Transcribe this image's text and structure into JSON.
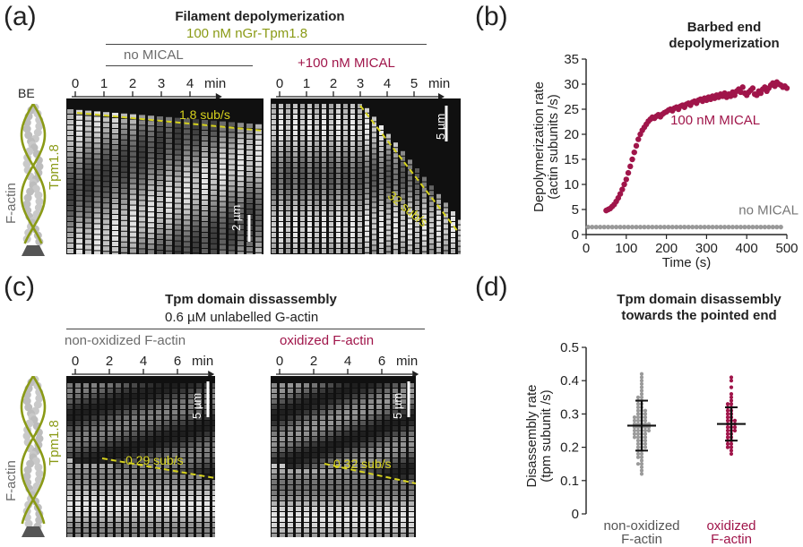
{
  "panel_a": {
    "label": "(a)",
    "title": "Filament depolymerization",
    "condition": "100 nM nGr-Tpm1.8",
    "left_header": "no MICAL",
    "right_header": "+100 nM MICAL",
    "left_ticks": [
      "0",
      "1",
      "2",
      "3",
      "4"
    ],
    "left_unit": "min",
    "right_ticks": [
      "0",
      "1",
      "2",
      "3",
      "4",
      "5"
    ],
    "right_unit": "min",
    "left_rate": "1.8 sub/s",
    "right_rate": "32 sub/s",
    "left_scale": "2 µm",
    "right_scale": "5 µm",
    "diagram_be": "BE",
    "diagram_factin": "F-actin",
    "diagram_tpm": "Tpm1.8"
  },
  "panel_b": {
    "label": "(b)",
    "title_line1": "Barbed end",
    "title_line2": "depolymerization",
    "series_mical_label": "100 nM MICAL",
    "series_nomical_label": "no MICAL"
  },
  "panel_c": {
    "label": "(c)",
    "title": "Tpm domain dissassembly",
    "condition": "0.6 µM unlabelled G-actin",
    "left_header": "non-oxidized F-actin",
    "right_header": "oxidized F-actin",
    "left_ticks": [
      "0",
      "2",
      "4",
      "6"
    ],
    "left_unit": "min",
    "right_ticks": [
      "0",
      "2",
      "4",
      "6"
    ],
    "right_unit": "min",
    "left_rate": "0.29 sub/s",
    "right_rate": "0.32 sub/s",
    "left_scale": "5 µm",
    "right_scale": "5 µm",
    "diagram_factin": "F-actin",
    "diagram_tpm": "Tpm1.8"
  },
  "panel_d": {
    "label": "(d)",
    "title_line1": "Tpm domain disassembly",
    "title_line2": "towards the pointed end"
  },
  "colors": {
    "mical": "#a0154a",
    "nomical": "#9a9a9a",
    "olive": "#8a9a16",
    "rate_line": "#d6d21e"
  },
  "chart_data": [
    {
      "type": "scatter",
      "title": "Barbed end depolymerization",
      "xlabel": "Time (s)",
      "ylabel": "Depolymerization rate (actin subunits /s)",
      "xlim": [
        0,
        500
      ],
      "ylim": [
        0,
        35
      ],
      "xticks": [
        0,
        100,
        200,
        300,
        400,
        500
      ],
      "yticks": [
        0,
        5,
        10,
        15,
        20,
        25,
        30,
        35
      ],
      "grid": false,
      "series": [
        {
          "name": "100 nM MICAL",
          "x": [
            50,
            55,
            60,
            65,
            70,
            75,
            80,
            85,
            90,
            95,
            100,
            105,
            110,
            115,
            120,
            125,
            130,
            135,
            140,
            145,
            150,
            155,
            160,
            165,
            170,
            175,
            180,
            185,
            190,
            195,
            200,
            205,
            210,
            215,
            220,
            225,
            230,
            235,
            240,
            245,
            250,
            255,
            260,
            265,
            270,
            275,
            280,
            285,
            290,
            295,
            300,
            305,
            310,
            315,
            320,
            325,
            330,
            335,
            340,
            345,
            350,
            355,
            360,
            365,
            370,
            375,
            380,
            385,
            390,
            395,
            400,
            405,
            410,
            415,
            420,
            425,
            430,
            435,
            440,
            445,
            450,
            455,
            460,
            465,
            470,
            475,
            480,
            485,
            490,
            495,
            500
          ],
          "y": [
            4.8,
            5.0,
            5.2,
            5.6,
            6.0,
            6.6,
            7.3,
            8.1,
            9.0,
            10.0,
            11.0,
            12.3,
            13.6,
            15.0,
            16.4,
            17.7,
            19.0,
            20.0,
            20.8,
            21.4,
            22.0,
            22.6,
            23.0,
            23.4,
            23.2,
            23.6,
            23.9,
            23.5,
            24.0,
            24.3,
            24.5,
            24.8,
            25.0,
            24.7,
            25.2,
            25.4,
            25.0,
            25.6,
            25.8,
            25.4,
            26.0,
            26.2,
            25.8,
            26.4,
            26.6,
            26.2,
            26.8,
            27.0,
            26.6,
            27.2,
            26.8,
            27.4,
            27.0,
            27.6,
            27.2,
            27.8,
            27.4,
            28.0,
            27.6,
            28.2,
            27.4,
            28.0,
            27.6,
            28.4,
            27.8,
            28.6,
            29.0,
            28.4,
            29.4,
            28.2,
            27.8,
            28.4,
            28.8,
            29.2,
            28.0,
            27.8,
            28.6,
            28.2,
            29.0,
            29.4,
            28.6,
            29.2,
            29.8,
            30.2,
            29.6,
            30.4,
            30.0,
            29.8,
            29.4,
            29.6,
            29.2
          ]
        },
        {
          "name": "no MICAL",
          "x": [
            5,
            15,
            25,
            35,
            45,
            55,
            65,
            75,
            85,
            95,
            105,
            115,
            125,
            135,
            145,
            155,
            165,
            175,
            185,
            195,
            205,
            215,
            225,
            235,
            245,
            255,
            265,
            275,
            285,
            295,
            305,
            315,
            325,
            335,
            345,
            355,
            365,
            375,
            385,
            395,
            405,
            415,
            425,
            435,
            445,
            455,
            465,
            475,
            485
          ],
          "y": [
            1.5,
            1.5,
            1.5,
            1.5,
            1.5,
            1.5,
            1.5,
            1.5,
            1.5,
            1.5,
            1.5,
            1.5,
            1.5,
            1.5,
            1.5,
            1.5,
            1.5,
            1.5,
            1.5,
            1.5,
            1.5,
            1.5,
            1.5,
            1.5,
            1.5,
            1.5,
            1.5,
            1.5,
            1.5,
            1.5,
            1.5,
            1.5,
            1.5,
            1.5,
            1.5,
            1.5,
            1.5,
            1.5,
            1.5,
            1.5,
            1.5,
            1.5,
            1.5,
            1.5,
            1.5,
            1.5,
            1.5,
            1.5,
            1.5
          ]
        }
      ]
    },
    {
      "type": "scatter",
      "title": "Tpm domain disassembly towards the pointed end",
      "xlabel": "",
      "ylabel": "Disassembly rate (tpm subunit /s)",
      "ylim": [
        0,
        0.5
      ],
      "yticks": [
        0,
        0.1,
        0.2,
        0.3,
        0.4,
        0.5
      ],
      "categories": [
        "non-oxidized F-actin",
        "oxidized F-actin"
      ],
      "series": [
        {
          "name": "non-oxidized F-actin",
          "mean": 0.265,
          "sd_low": 0.19,
          "sd_high": 0.34,
          "values": [
            0.12,
            0.13,
            0.14,
            0.15,
            0.15,
            0.16,
            0.17,
            0.17,
            0.18,
            0.18,
            0.19,
            0.19,
            0.2,
            0.2,
            0.2,
            0.21,
            0.21,
            0.21,
            0.22,
            0.22,
            0.22,
            0.23,
            0.23,
            0.23,
            0.23,
            0.24,
            0.24,
            0.24,
            0.24,
            0.25,
            0.25,
            0.25,
            0.25,
            0.25,
            0.26,
            0.26,
            0.26,
            0.26,
            0.26,
            0.27,
            0.27,
            0.27,
            0.27,
            0.27,
            0.28,
            0.28,
            0.28,
            0.28,
            0.29,
            0.29,
            0.29,
            0.29,
            0.3,
            0.3,
            0.3,
            0.31,
            0.31,
            0.31,
            0.32,
            0.32,
            0.33,
            0.33,
            0.34,
            0.34,
            0.35,
            0.35,
            0.36,
            0.37,
            0.38,
            0.39,
            0.4,
            0.41,
            0.42
          ]
        },
        {
          "name": "oxidized F-actin",
          "mean": 0.27,
          "sd_low": 0.22,
          "sd_high": 0.32,
          "values": [
            0.18,
            0.19,
            0.2,
            0.2,
            0.21,
            0.21,
            0.22,
            0.22,
            0.23,
            0.23,
            0.24,
            0.24,
            0.25,
            0.25,
            0.25,
            0.26,
            0.26,
            0.26,
            0.27,
            0.27,
            0.27,
            0.28,
            0.28,
            0.28,
            0.29,
            0.29,
            0.3,
            0.3,
            0.31,
            0.31,
            0.32,
            0.32,
            0.33,
            0.33,
            0.34,
            0.35,
            0.36,
            0.38,
            0.4,
            0.41
          ]
        }
      ]
    }
  ]
}
